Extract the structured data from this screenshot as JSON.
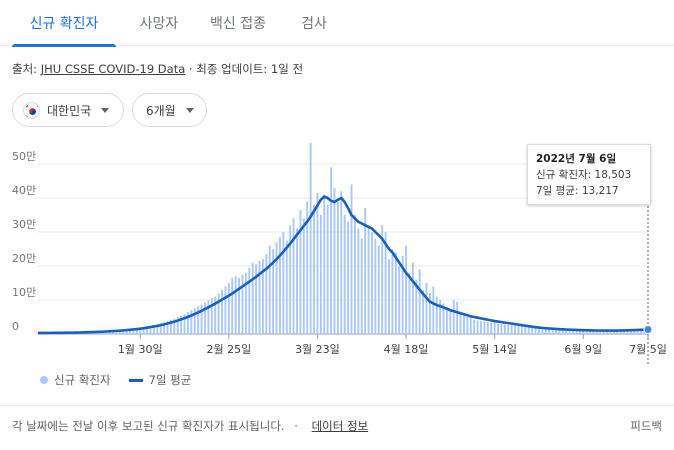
{
  "tabs": [
    {
      "label": "신규 확진자",
      "active": true
    },
    {
      "label": "사망자",
      "active": false
    },
    {
      "label": "백신 접종",
      "active": false
    },
    {
      "label": "검사",
      "active": false
    }
  ],
  "source": {
    "prefix": "출처:",
    "link": "JHU CSSE COVID-19 Data",
    "separator": "·",
    "updated": "최종 업데이트: 1일 전"
  },
  "filters": {
    "country": "대한민국",
    "country_icon": "south-korea-flag-icon",
    "range": "6개월"
  },
  "tooltip": {
    "title": "2022년 7월 6일",
    "cases_line": "신규 확진자: 18,503",
    "avg_line": "7일 평균: 13,217"
  },
  "legend": {
    "bars": "신규 확진자",
    "line": "7일 평균"
  },
  "footer": {
    "note": "각 날짜에는 전날 이후 보고된 신규 확진자가 표시됩니다.",
    "separator": "·",
    "link": "데이터 정보",
    "feedback": "피드백"
  },
  "colors": {
    "accent": "#1a73e8",
    "bar": "#a8c7fa",
    "line": "#1a5fbf"
  },
  "chart_data": {
    "type": "bar",
    "title": "",
    "y_ticks": [
      "0",
      "10만",
      "20만",
      "30만",
      "40만",
      "50만"
    ],
    "ylim": [
      0,
      500000
    ],
    "x_ticks": [
      "1월 30일",
      "2월 25일",
      "3월 23일",
      "4월 18일",
      "5월 14일",
      "6월 9일",
      "7월 5일"
    ],
    "grid": true,
    "legend_position": "bottom-left",
    "bar_series_name": "신규 확진자",
    "line_series_name": "7일 평균",
    "highlighted_point": {
      "date": "2022-07-06",
      "value": 18503,
      "average": 13217
    },
    "daily_cases": [
      3000,
      3100,
      3200,
      3300,
      3400,
      3500,
      3600,
      3800,
      3900,
      4100,
      4300,
      4500,
      4800,
      5100,
      5400,
      5800,
      6200,
      6600,
      7100,
      7600,
      8200,
      8800,
      9500,
      10300,
      11200,
      12100,
      13200,
      14300,
      15600,
      17100,
      18600,
      20400,
      22300,
      24300,
      26600,
      29000,
      31800,
      34700,
      38000,
      41500,
      45400,
      49600,
      54200,
      59100,
      64300,
      69800,
      75400,
      81200,
      87100,
      93000,
      99000,
      105000,
      110000,
      120000,
      130000,
      140000,
      150000,
      165000,
      170000,
      165000,
      175000,
      180000,
      195000,
      210000,
      205000,
      215000,
      220000,
      235000,
      260000,
      250000,
      270000,
      285000,
      300000,
      275000,
      320000,
      340000,
      310000,
      365000,
      340000,
      390000,
      563000,
      380000,
      415000,
      350000,
      410000,
      380000,
      490000,
      430000,
      390000,
      420000,
      350000,
      330000,
      440000,
      350000,
      310000,
      280000,
      370000,
      320000,
      300000,
      280000,
      260000,
      320000,
      300000,
      220000,
      250000,
      240000,
      200000,
      230000,
      260000,
      180000,
      210000,
      160000,
      190000,
      130000,
      150000,
      120000,
      140000,
      110000,
      100000,
      90000,
      80000,
      70000,
      100000,
      95000,
      60000,
      55000,
      50000,
      48000,
      42000,
      40000,
      38000,
      37000,
      35000,
      34000,
      36000,
      30000,
      29000,
      28000,
      27000,
      26000,
      25000,
      24000,
      23000,
      22000,
      21000,
      20000,
      19000,
      18000,
      17000,
      16500,
      16000,
      15500,
      15000,
      14500,
      14000,
      13500,
      13000,
      12500,
      12200,
      12000,
      11800,
      11500,
      11200,
      11000,
      10800,
      10500,
      10300,
      10100,
      10000,
      10200,
      10500,
      11000,
      11500,
      12000,
      13000,
      14000,
      15000,
      16500,
      17500,
      18503
    ],
    "seven_day_average": [
      3000,
      3050,
      3100,
      3200,
      3300,
      3400,
      3500,
      3600,
      3750,
      3900,
      4050,
      4250,
      4450,
      4700,
      4950,
      5250,
      5600,
      6000,
      6400,
      6850,
      7350,
      7900,
      8500,
      9150,
      9850,
      10650,
      11500,
      12400,
      13400,
      14500,
      15750,
      17100,
      18600,
      20200,
      22000,
      23900,
      26000,
      28300,
      30800,
      33500,
      36400,
      39500,
      42900,
      46500,
      50400,
      54500,
      58900,
      63500,
      68300,
      73300,
      78500,
      83900,
      89400,
      95100,
      101000,
      107000,
      113000,
      119000,
      126000,
      133000,
      140000,
      147000,
      154000,
      161000,
      168000,
      176000,
      184000,
      192000,
      201000,
      210000,
      220000,
      231000,
      242000,
      254000,
      266000,
      279000,
      292000,
      305000,
      318000,
      331000,
      345000,
      362000,
      378000,
      395000,
      404000,
      400000,
      392000,
      388000,
      395000,
      400000,
      388000,
      370000,
      350000,
      340000,
      330000,
      325000,
      320000,
      315000,
      310000,
      300000,
      290000,
      280000,
      265000,
      250000,
      240000,
      225000,
      210000,
      195000,
      180000,
      168000,
      155000,
      143000,
      130000,
      118000,
      106000,
      95000,
      90000,
      85000,
      82000,
      78000,
      74000,
      70000,
      67000,
      64000,
      61000,
      58000,
      55000,
      52000,
      50000,
      48000,
      46000,
      44000,
      42000,
      40000,
      38000,
      36500,
      35000,
      33500,
      32000,
      30500,
      29000,
      27500,
      26000,
      24500,
      23000,
      21500,
      20000,
      19000,
      18000,
      17000,
      16200,
      15500,
      14800,
      14200,
      13700,
      13200,
      12800,
      12400,
      12000,
      11600,
      11300,
      11000,
      10700,
      10500,
      10300,
      10100,
      10000,
      10000,
      10000,
      10100,
      10200,
      10400,
      10600,
      10900,
      11200,
      11600,
      12000,
      12400,
      12800,
      13217
    ]
  }
}
